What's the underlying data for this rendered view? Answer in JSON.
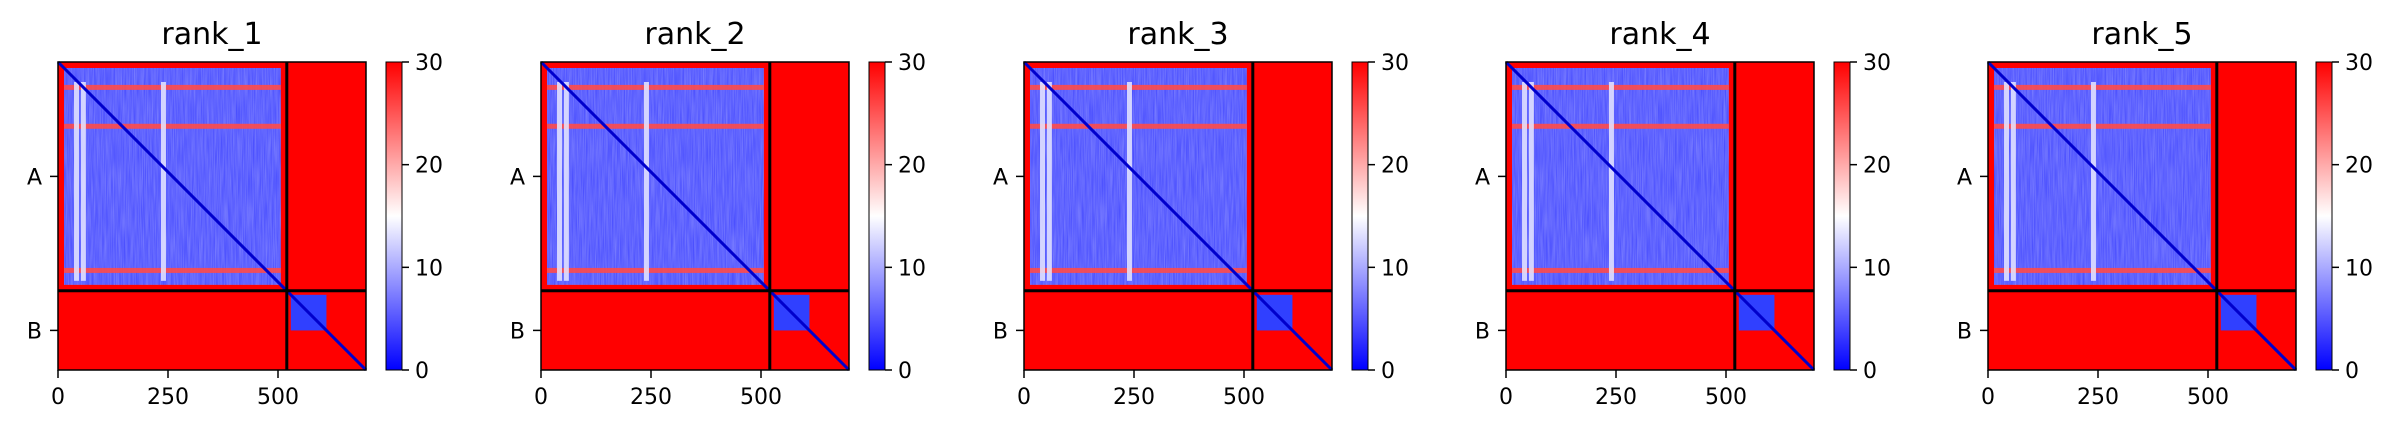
{
  "chart_data": {
    "type": "heatmap",
    "panels": [
      {
        "title": "rank_1"
      },
      {
        "title": "rank_2"
      },
      {
        "title": "rank_3"
      },
      {
        "title": "rank_4"
      },
      {
        "title": "rank_5"
      }
    ],
    "chain_labels": [
      "A",
      "B"
    ],
    "chain_boundary": 520,
    "xlim": [
      0,
      700
    ],
    "x_ticks": [
      0,
      250,
      500
    ],
    "colorbar": {
      "vmin": 0,
      "vmax": 30,
      "ticks": [
        0,
        10,
        20,
        30
      ],
      "colors": [
        "#0000ff",
        "#ffffff",
        "#ff0000"
      ]
    },
    "grid": false
  }
}
